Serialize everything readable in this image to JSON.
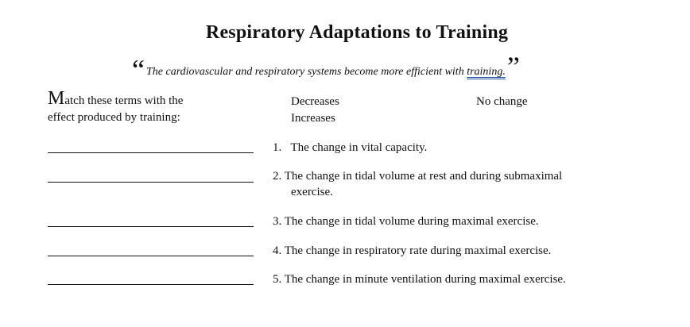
{
  "title": "Respiratory Adaptations to Training",
  "quote": {
    "open_mark": "“",
    "text": "The cardiovascular and respiratory systems become more efficient with ",
    "underlined": "training.",
    "close_mark": "”"
  },
  "instructions": {
    "dropcap": "M",
    "line1": "atch these terms with the",
    "line2": "effect produced by training:"
  },
  "options": [
    "Decreases",
    "No change",
    "Increases"
  ],
  "items": [
    {
      "num": "1.",
      "text": "The change in vital capacity."
    },
    {
      "num": "2.",
      "text": "The change in tidal volume at rest and during submaximal",
      "cont": "exercise."
    },
    {
      "num": "3.",
      "text": "The change in tidal volume during maximal exercise."
    },
    {
      "num": "4.",
      "text": "The change in respiratory rate during maximal exercise."
    },
    {
      "num": "5.",
      "text": "The change in minute ventilation during maximal exercise."
    }
  ]
}
